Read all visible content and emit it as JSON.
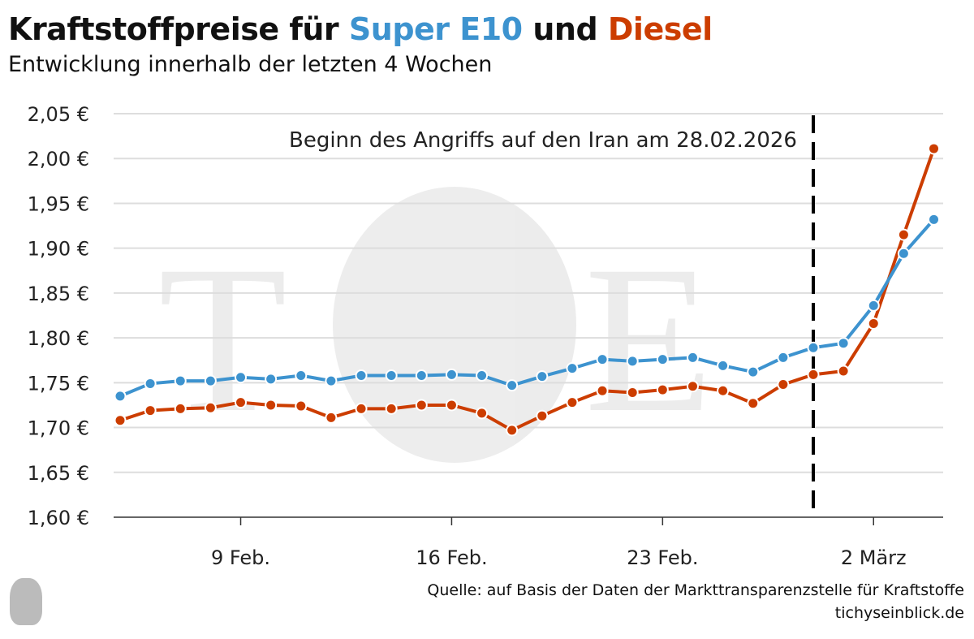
{
  "title": {
    "prefix": "Kraftstoffpreise für ",
    "e10": "Super E10",
    "mid": " und ",
    "diesel": "Diesel"
  },
  "subtitle": "Entwicklung innerhalb der letzten 4 Wochen",
  "colors": {
    "e10": "#3d93cf",
    "diesel": "#cc3d00",
    "grid": "#dddddd",
    "marker": "#000000"
  },
  "source": "Quelle: auf Basis der Daten der Markttransparenzstelle für Kraftstoffe",
  "site": "tichyseinblick.de",
  "chart_data": {
    "type": "line",
    "title": "Kraftstoffpreise für Super E10 und Diesel",
    "x_start": "2026-02-05",
    "x_end": "2026-03-04",
    "xticks": [
      {
        "day": 4,
        "label": "9 Feb."
      },
      {
        "day": 11,
        "label": "16 Feb."
      },
      {
        "day": 18,
        "label": "23 Feb."
      },
      {
        "day": 25,
        "label": "2 März"
      }
    ],
    "ylim": [
      1.6,
      2.05
    ],
    "yticks": [
      "1,60 €",
      "1,65 €",
      "1,70 €",
      "1,75 €",
      "1,80 €",
      "1,85 €",
      "1,90 €",
      "1,95 €",
      "2,00 €",
      "2,05 €"
    ],
    "grid": true,
    "annotation": {
      "day": 23,
      "label": "Beginn des Angriffs auf den Iran am 28.02.2026"
    },
    "series": [
      {
        "name": "Super E10",
        "values": [
          1.735,
          1.749,
          1.752,
          1.752,
          1.756,
          1.754,
          1.758,
          1.752,
          1.758,
          1.758,
          1.758,
          1.759,
          1.758,
          1.747,
          1.757,
          1.766,
          1.776,
          1.774,
          1.776,
          1.778,
          1.769,
          1.762,
          1.778,
          1.789,
          1.794,
          1.836,
          1.894,
          1.932
        ]
      },
      {
        "name": "Diesel",
        "values": [
          1.708,
          1.719,
          1.721,
          1.722,
          1.728,
          1.725,
          1.724,
          1.711,
          1.721,
          1.721,
          1.725,
          1.725,
          1.716,
          1.697,
          1.713,
          1.728,
          1.741,
          1.739,
          1.742,
          1.746,
          1.741,
          1.727,
          1.748,
          1.759,
          1.763,
          1.816,
          1.915,
          2.011
        ]
      }
    ]
  }
}
